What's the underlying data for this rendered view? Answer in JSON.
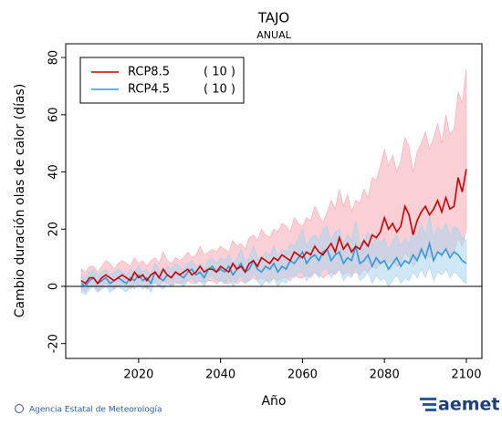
{
  "chart_data": {
    "type": "line",
    "title": "TAJO",
    "subtitle": "ANUAL",
    "x_label": "Año",
    "y_label": "Cambio duración olas de calor (días)",
    "footer": "Agencia Estatal de Meteorología",
    "logo": "aemet",
    "xlim": [
      2002.2,
      2103.8
    ],
    "xticks": [
      2020,
      2040,
      2060,
      2080,
      2100
    ],
    "ylim": [
      -25.2,
      84.8
    ],
    "yticks": [
      -20,
      0,
      20,
      40,
      60,
      80
    ],
    "legend": "top-left",
    "x": [
      2006,
      2007,
      2008,
      2009,
      2010,
      2011,
      2012,
      2013,
      2014,
      2015,
      2016,
      2017,
      2018,
      2019,
      2020,
      2021,
      2022,
      2023,
      2024,
      2025,
      2026,
      2027,
      2028,
      2029,
      2030,
      2031,
      2032,
      2033,
      2034,
      2035,
      2036,
      2037,
      2038,
      2039,
      2040,
      2041,
      2042,
      2043,
      2044,
      2045,
      2046,
      2047,
      2048,
      2049,
      2050,
      2051,
      2052,
      2053,
      2054,
      2055,
      2056,
      2057,
      2058,
      2059,
      2060,
      2061,
      2062,
      2063,
      2064,
      2065,
      2066,
      2067,
      2068,
      2069,
      2070,
      2071,
      2072,
      2073,
      2074,
      2075,
      2076,
      2077,
      2078,
      2079,
      2080,
      2081,
      2082,
      2083,
      2084,
      2085,
      2086,
      2087,
      2088,
      2089,
      2090,
      2091,
      2092,
      2093,
      2094,
      2095,
      2096,
      2097,
      2098,
      2099,
      2100
    ],
    "series": [
      {
        "name": "RCP8.5",
        "runs": "( 10 )",
        "color": "#cc0000",
        "band_color": "#f6aab4",
        "values": [
          2,
          1,
          3,
          3,
          1,
          3,
          4,
          3,
          2,
          3,
          4,
          3,
          2,
          5,
          3,
          4,
          2,
          4,
          5,
          3,
          6,
          4,
          3,
          5,
          4,
          5,
          6,
          4,
          5,
          7,
          5,
          6,
          6,
          5,
          7,
          6,
          5,
          8,
          6,
          7,
          5,
          8,
          9,
          7,
          10,
          9,
          8,
          10,
          9,
          11,
          10,
          9,
          12,
          11,
          10,
          12,
          11,
          14,
          12,
          11,
          13,
          15,
          12,
          17,
          13,
          15,
          12,
          14,
          13,
          16,
          14,
          18,
          17,
          19,
          24,
          20,
          22,
          19,
          21,
          28,
          25,
          18,
          23,
          26,
          28,
          25,
          27,
          30,
          26,
          31,
          27,
          28,
          38,
          33,
          41
        ],
        "upper": [
          6,
          5,
          7,
          7,
          5,
          7,
          9,
          8,
          6,
          8,
          9,
          8,
          7,
          10,
          8,
          9,
          7,
          9,
          10,
          8,
          12,
          9,
          8,
          10,
          9,
          10,
          12,
          10,
          11,
          14,
          11,
          12,
          13,
          12,
          14,
          13,
          12,
          16,
          14,
          15,
          13,
          17,
          18,
          16,
          20,
          18,
          17,
          20,
          19,
          22,
          21,
          19,
          24,
          22,
          21,
          24,
          23,
          28,
          25,
          22,
          26,
          30,
          27,
          34,
          28,
          32,
          26,
          30,
          29,
          34,
          31,
          38,
          37,
          42,
          48,
          42,
          46,
          40,
          44,
          52,
          49,
          40,
          47,
          50,
          54,
          48,
          52,
          57,
          50,
          60,
          53,
          55,
          68,
          64,
          76
        ],
        "lower": [
          -1,
          -2,
          0,
          0,
          -2,
          0,
          1,
          0,
          -1,
          0,
          1,
          0,
          -1,
          1,
          0,
          1,
          -1,
          1,
          1,
          0,
          2,
          1,
          0,
          1,
          1,
          1,
          2,
          1,
          1,
          2,
          1,
          2,
          2,
          1,
          2,
          1,
          1,
          2,
          1,
          2,
          1,
          2,
          3,
          2,
          3,
          2,
          2,
          3,
          2,
          3,
          3,
          2,
          4,
          3,
          3,
          4,
          3,
          5,
          4,
          3,
          4,
          5,
          4,
          6,
          4,
          5,
          4,
          5,
          4,
          6,
          5,
          7,
          6,
          8,
          10,
          8,
          9,
          7,
          8,
          12,
          10,
          7,
          9,
          11,
          12,
          10,
          11,
          13,
          10,
          14,
          11,
          12,
          17,
          14,
          20
        ]
      },
      {
        "name": "RCP4.5",
        "runs": "( 10 )",
        "color": "#3399dd",
        "band_color": "#a9d4ee",
        "values": [
          1,
          0,
          2,
          3,
          1,
          2,
          3,
          1,
          2,
          3,
          2,
          1,
          3,
          2,
          4,
          2,
          3,
          1,
          5,
          3,
          2,
          4,
          3,
          5,
          4,
          3,
          5,
          6,
          4,
          5,
          3,
          6,
          7,
          5,
          6,
          5,
          7,
          4,
          6,
          8,
          5,
          6,
          9,
          6,
          5,
          7,
          6,
          8,
          5,
          7,
          6,
          9,
          8,
          10,
          12,
          8,
          10,
          11,
          9,
          12,
          13,
          9,
          11,
          12,
          8,
          10,
          9,
          14,
          8,
          9,
          11,
          7,
          10,
          8,
          9,
          6,
          8,
          10,
          7,
          9,
          8,
          11,
          9,
          13,
          10,
          15,
          9,
          12,
          11,
          13,
          10,
          12,
          11,
          9,
          8
        ],
        "upper": [
          4,
          3,
          5,
          6,
          4,
          5,
          6,
          4,
          5,
          6,
          5,
          4,
          6,
          5,
          7,
          5,
          6,
          4,
          8,
          6,
          5,
          7,
          6,
          8,
          7,
          6,
          8,
          9,
          7,
          8,
          6,
          9,
          10,
          8,
          10,
          9,
          11,
          8,
          10,
          13,
          9,
          10,
          14,
          10,
          10,
          12,
          11,
          14,
          10,
          13,
          12,
          15,
          14,
          17,
          20,
          14,
          17,
          18,
          16,
          20,
          21,
          16,
          19,
          20,
          15,
          18,
          16,
          23,
          15,
          16,
          19,
          14,
          18,
          15,
          17,
          13,
          16,
          18,
          14,
          17,
          15,
          20,
          17,
          22,
          18,
          25,
          17,
          21,
          19,
          22,
          18,
          21,
          20,
          17,
          16
        ],
        "lower": [
          -2,
          -3,
          -1,
          0,
          -2,
          -1,
          0,
          -2,
          -1,
          0,
          -1,
          -2,
          0,
          -1,
          1,
          -1,
          0,
          -2,
          2,
          0,
          -1,
          1,
          0,
          2,
          1,
          0,
          2,
          3,
          1,
          2,
          0,
          3,
          4,
          2,
          2,
          1,
          3,
          0,
          2,
          4,
          1,
          2,
          5,
          2,
          0,
          2,
          1,
          3,
          0,
          2,
          1,
          4,
          3,
          5,
          5,
          2,
          4,
          5,
          3,
          6,
          6,
          3,
          5,
          6,
          2,
          4,
          3,
          7,
          2,
          3,
          5,
          1,
          4,
          2,
          3,
          0,
          2,
          4,
          1,
          3,
          2,
          5,
          3,
          6,
          3,
          7,
          2,
          5,
          4,
          6,
          3,
          5,
          4,
          2,
          1
        ]
      }
    ]
  }
}
